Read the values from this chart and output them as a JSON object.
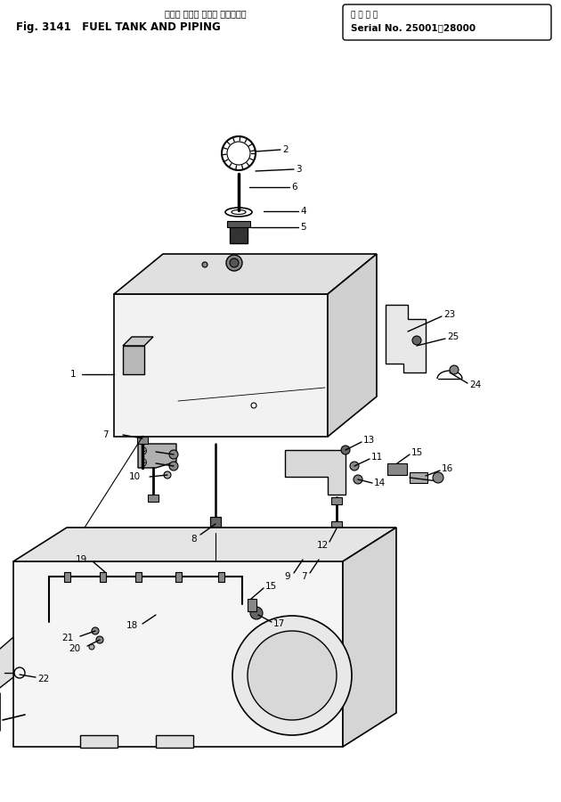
{
  "bg_color": "#ffffff",
  "line_color": "#000000",
  "fig_width": 6.3,
  "fig_height": 9.0,
  "dpi": 100,
  "title_jp": "フェル タンク および パイピング",
  "title_en": "Fig. 3141   FUEL TANK AND PIPING",
  "serial_line1": "適 用 号 機",
  "serial_line2": "Serial No. 25001～28000"
}
